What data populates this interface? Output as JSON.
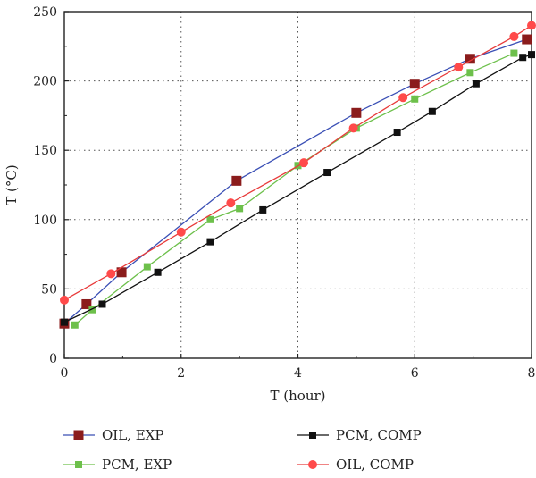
{
  "chart_data": {
    "type": "line",
    "xlabel": "T (hour)",
    "ylabel": "T (°C)",
    "xlim": [
      0,
      8
    ],
    "ylim": [
      0,
      250
    ],
    "xticks": [
      "0",
      "2",
      "4",
      "6",
      "8"
    ],
    "yticks": [
      "0",
      "50",
      "100",
      "150",
      "200",
      "250"
    ],
    "grid": "dotted",
    "legend_position": "bottom",
    "series": [
      {
        "name": "OIL, EXP",
        "line_color": "#3a4fb5",
        "marker_color": "#8b1c1c",
        "marker": "square",
        "x": [
          0,
          0.38,
          0.98,
          2.95,
          5.0,
          6.0,
          6.95,
          7.92
        ],
        "y": [
          25,
          39,
          62,
          128,
          177,
          198,
          216,
          230
        ]
      },
      {
        "name": "PCM, EXP",
        "line_color": "#6dc04b",
        "marker_color": "#6dc04b",
        "marker": "square",
        "x": [
          0.18,
          0.48,
          1.42,
          2.5,
          3.0,
          4.0,
          5.0,
          6.0,
          6.95,
          7.7
        ],
        "y": [
          24,
          35,
          66,
          100,
          108,
          139,
          166,
          187,
          206,
          220
        ]
      },
      {
        "name": "PCM, COMP",
        "line_color": "#111111",
        "marker_color": "#111111",
        "marker": "square",
        "x": [
          0,
          0.65,
          1.6,
          2.5,
          3.4,
          4.5,
          5.7,
          6.3,
          7.05,
          7.85,
          8.0
        ],
        "y": [
          26,
          39,
          62,
          84,
          107,
          134,
          163,
          178,
          198,
          217,
          219
        ]
      },
      {
        "name": "OIL, COMP",
        "line_color": "#e83a3a",
        "marker_color": "#ff4a4a",
        "marker": "circle",
        "x": [
          0,
          0.8,
          2.0,
          2.85,
          4.1,
          4.95,
          5.8,
          6.75,
          7.7,
          8.0
        ],
        "y": [
          42,
          61,
          91,
          112,
          141,
          166,
          188,
          210,
          232,
          240
        ]
      }
    ]
  }
}
